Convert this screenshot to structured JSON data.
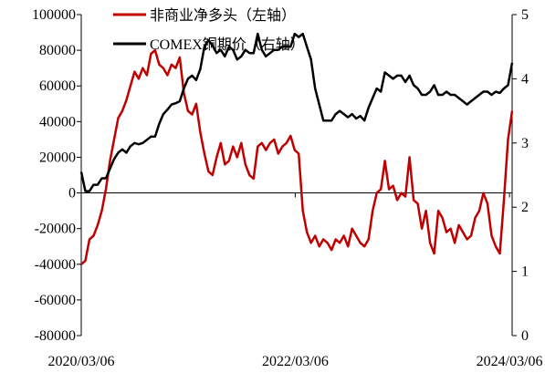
{
  "chart_data": {
    "type": "line",
    "title": "",
    "x_tick_labels": [
      "2020/03/06",
      "2022/03/06",
      "2024/03/06"
    ],
    "y_left": {
      "label": "",
      "range": [
        -80000,
        100000
      ],
      "ticks": [
        -80000,
        -60000,
        -40000,
        -20000,
        0,
        20000,
        40000,
        60000,
        80000,
        100000
      ]
    },
    "y_right": {
      "label": "",
      "range": [
        0,
        5
      ],
      "ticks": [
        0,
        1,
        2,
        3,
        4,
        5
      ]
    },
    "legend_position": "top-center",
    "grid": false,
    "series": [
      {
        "name": "非商业净多头（左轴）",
        "axis": "left",
        "color": "#c00000",
        "x": [
          "2020-03-06",
          "2020-03-20",
          "2020-04-03",
          "2020-04-17",
          "2020-05-01",
          "2020-05-15",
          "2020-05-29",
          "2020-06-12",
          "2020-06-26",
          "2020-07-10",
          "2020-07-24",
          "2020-08-07",
          "2020-08-21",
          "2020-09-04",
          "2020-09-18",
          "2020-10-02",
          "2020-10-16",
          "2020-10-30",
          "2020-11-13",
          "2020-11-27",
          "2020-12-11",
          "2020-12-25",
          "2021-01-08",
          "2021-01-22",
          "2021-02-05",
          "2021-02-19",
          "2021-03-05",
          "2021-03-19",
          "2021-04-02",
          "2021-04-16",
          "2021-04-30",
          "2021-05-14",
          "2021-05-28",
          "2021-06-11",
          "2021-06-25",
          "2021-07-09",
          "2021-07-23",
          "2021-08-06",
          "2021-08-20",
          "2021-09-03",
          "2021-09-17",
          "2021-10-01",
          "2021-10-15",
          "2021-10-29",
          "2021-11-12",
          "2021-11-26",
          "2021-12-10",
          "2021-12-24",
          "2022-01-07",
          "2022-01-21",
          "2022-02-04",
          "2022-02-18",
          "2022-03-04",
          "2022-03-18",
          "2022-04-01",
          "2022-04-15",
          "2022-04-29",
          "2022-05-13",
          "2022-05-27",
          "2022-06-10",
          "2022-06-24",
          "2022-07-08",
          "2022-07-22",
          "2022-08-05",
          "2022-08-19",
          "2022-09-02",
          "2022-09-16",
          "2022-09-30",
          "2022-10-14",
          "2022-10-28",
          "2022-11-11",
          "2022-11-25",
          "2022-12-09",
          "2022-12-23",
          "2023-01-06",
          "2023-01-20",
          "2023-02-03",
          "2023-02-17",
          "2023-03-03",
          "2023-03-17",
          "2023-03-31",
          "2023-04-14",
          "2023-04-28",
          "2023-05-12",
          "2023-05-26",
          "2023-06-09",
          "2023-06-23",
          "2023-07-07",
          "2023-07-21",
          "2023-08-04",
          "2023-08-18",
          "2023-09-01",
          "2023-09-15",
          "2023-09-29",
          "2023-10-13",
          "2023-10-27",
          "2023-11-10",
          "2023-11-24",
          "2023-12-08",
          "2023-12-22",
          "2024-01-05",
          "2024-01-19",
          "2024-02-02",
          "2024-02-16",
          "2024-03-01",
          "2024-03-15"
        ],
        "values": [
          -40000,
          -38000,
          -26000,
          -24000,
          -18000,
          -10000,
          2000,
          18000,
          30000,
          42000,
          46000,
          52000,
          60000,
          68000,
          64000,
          70000,
          66000,
          78000,
          80000,
          72000,
          70000,
          66000,
          72000,
          70000,
          76000,
          56000,
          46000,
          44000,
          50000,
          34000,
          22000,
          12000,
          10000,
          20000,
          28000,
          16000,
          18000,
          26000,
          20000,
          28000,
          16000,
          10000,
          8000,
          26000,
          28000,
          24000,
          28000,
          30000,
          22000,
          26000,
          28000,
          32000,
          24000,
          22000,
          -10000,
          -22000,
          -28000,
          -24000,
          -30000,
          -26000,
          -28000,
          -32000,
          -26000,
          -28000,
          -24000,
          -30000,
          -20000,
          -24000,
          -28000,
          -30000,
          -26000,
          -10000,
          0,
          2000,
          18000,
          2000,
          4000,
          -4000,
          0,
          -2000,
          20000,
          -4000,
          -6000,
          -20000,
          -10000,
          -28000,
          -34000,
          -10000,
          -14000,
          -22000,
          -20000,
          -28000,
          -18000,
          -22000,
          -26000,
          -24000,
          -14000,
          -10000,
          0,
          -6000,
          -24000,
          -30000,
          -34000,
          -4000,
          30000,
          46000
        ]
      },
      {
        "name": "COMEX铜期价（右轴）",
        "axis": "right",
        "color": "#000000",
        "x": [
          "2020-03-06",
          "2020-03-20",
          "2020-04-03",
          "2020-04-17",
          "2020-05-01",
          "2020-05-15",
          "2020-05-29",
          "2020-06-12",
          "2020-06-26",
          "2020-07-10",
          "2020-07-24",
          "2020-08-07",
          "2020-08-21",
          "2020-09-04",
          "2020-09-18",
          "2020-10-02",
          "2020-10-16",
          "2020-10-30",
          "2020-11-13",
          "2020-11-27",
          "2020-12-11",
          "2020-12-25",
          "2021-01-08",
          "2021-01-22",
          "2021-02-05",
          "2021-02-19",
          "2021-03-05",
          "2021-03-19",
          "2021-04-02",
          "2021-04-16",
          "2021-04-30",
          "2021-05-14",
          "2021-05-28",
          "2021-06-11",
          "2021-06-25",
          "2021-07-09",
          "2021-07-23",
          "2021-08-06",
          "2021-08-20",
          "2021-09-03",
          "2021-09-17",
          "2021-10-01",
          "2021-10-15",
          "2021-10-29",
          "2021-11-12",
          "2021-11-26",
          "2021-12-10",
          "2021-12-24",
          "2022-01-07",
          "2022-01-21",
          "2022-02-04",
          "2022-02-18",
          "2022-03-04",
          "2022-03-18",
          "2022-04-01",
          "2022-04-15",
          "2022-04-29",
          "2022-05-13",
          "2022-05-27",
          "2022-06-10",
          "2022-06-24",
          "2022-07-08",
          "2022-07-22",
          "2022-08-05",
          "2022-08-19",
          "2022-09-02",
          "2022-09-16",
          "2022-09-30",
          "2022-10-14",
          "2022-10-28",
          "2022-11-11",
          "2022-11-25",
          "2022-12-09",
          "2022-12-23",
          "2023-01-06",
          "2023-01-20",
          "2023-02-03",
          "2023-02-17",
          "2023-03-03",
          "2023-03-17",
          "2023-03-31",
          "2023-04-14",
          "2023-04-28",
          "2023-05-12",
          "2023-05-26",
          "2023-06-09",
          "2023-06-23",
          "2023-07-07",
          "2023-07-21",
          "2023-08-04",
          "2023-08-18",
          "2023-09-01",
          "2023-09-15",
          "2023-09-29",
          "2023-10-13",
          "2023-10-27",
          "2023-11-10",
          "2023-11-24",
          "2023-12-08",
          "2023-12-22",
          "2024-01-05",
          "2024-01-19",
          "2024-02-02",
          "2024-02-16",
          "2024-03-01",
          "2024-03-15"
        ],
        "values": [
          2.55,
          2.25,
          2.25,
          2.35,
          2.35,
          2.45,
          2.45,
          2.6,
          2.75,
          2.85,
          2.9,
          2.85,
          2.95,
          3.0,
          2.98,
          3.0,
          3.05,
          3.1,
          3.1,
          3.3,
          3.45,
          3.52,
          3.6,
          3.62,
          3.65,
          3.85,
          4.0,
          4.05,
          3.98,
          4.15,
          4.5,
          4.6,
          4.52,
          4.4,
          4.45,
          4.35,
          4.5,
          4.45,
          4.3,
          4.35,
          4.45,
          4.4,
          4.4,
          4.7,
          4.45,
          4.35,
          4.4,
          4.45,
          4.45,
          4.5,
          4.5,
          4.5,
          4.7,
          4.65,
          4.7,
          4.5,
          4.3,
          3.85,
          3.6,
          3.35,
          3.35,
          3.35,
          3.45,
          3.5,
          3.45,
          3.4,
          3.45,
          3.38,
          3.42,
          3.35,
          3.55,
          3.7,
          3.85,
          3.8,
          4.1,
          4.05,
          4.0,
          4.05,
          4.05,
          3.95,
          4.05,
          3.9,
          3.85,
          3.75,
          3.75,
          3.8,
          3.9,
          3.75,
          3.75,
          3.8,
          3.75,
          3.75,
          3.7,
          3.65,
          3.6,
          3.65,
          3.7,
          3.75,
          3.8,
          3.8,
          3.75,
          3.8,
          3.78,
          3.85,
          3.9,
          4.25
        ]
      }
    ]
  }
}
